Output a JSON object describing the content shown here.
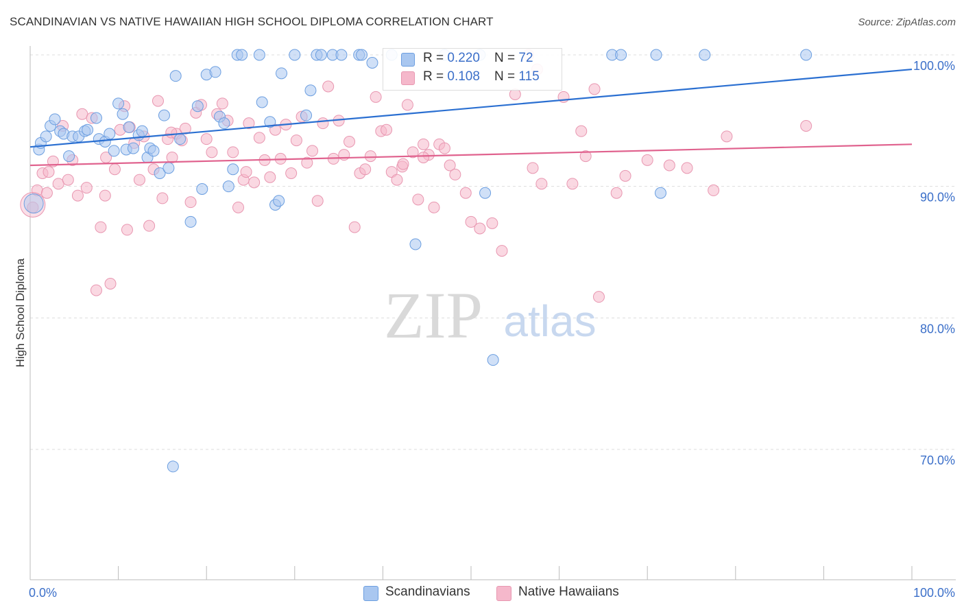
{
  "title": "SCANDINAVIAN VS NATIVE HAWAIIAN HIGH SCHOOL DIPLOMA CORRELATION CHART",
  "source": "Source: ZipAtlas.com",
  "watermark": {
    "zip": "ZIP",
    "atlas": "atlas"
  },
  "colors": {
    "blue_fill": "#a9c7f0",
    "blue_stroke": "#6b9ee0",
    "blue_line": "#2a6fd1",
    "pink_fill": "#f5b8cb",
    "pink_stroke": "#e896b0",
    "pink_line": "#e0628e",
    "axis_text": "#3b6fc9",
    "grid": "#dddddd"
  },
  "legend_top": {
    "rows": [
      {
        "r_label": "R = ",
        "r_value": "0.220",
        "n_label": "N = ",
        "n_value": "72"
      },
      {
        "r_label": "R = ",
        "r_value": "0.108",
        "n_label": "N = ",
        "n_value": "115"
      }
    ]
  },
  "bottom_legend": [
    "Scandinavians",
    "Native Hawaiians"
  ],
  "chart_data": {
    "type": "scatter",
    "title": "SCANDINAVIAN VS NATIVE HAWAIIAN HIGH SCHOOL DIPLOMA CORRELATION CHART",
    "xlabel": "",
    "ylabel": "High School Diploma",
    "xlim": [
      0,
      100
    ],
    "ylim": [
      60,
      102
    ],
    "x_tick_labels": [
      "0.0%",
      "100.0%"
    ],
    "y_ticks": [
      70,
      80,
      90,
      100
    ],
    "y_tick_labels": [
      "70.0%",
      "80.0%",
      "90.0%",
      "100.0%"
    ],
    "legend_position": "top-center",
    "series": [
      {
        "name": "Scandinavians",
        "R": 0.22,
        "N": 72,
        "trend": {
          "x": [
            0,
            100
          ],
          "y": [
            93.0,
            98.9
          ]
        },
        "points": [
          [
            1,
            92.8
          ],
          [
            1.2,
            93.3
          ],
          [
            1.8,
            93.8
          ],
          [
            2.3,
            94.6
          ],
          [
            2.8,
            95.1
          ],
          [
            3.4,
            94.2
          ],
          [
            3.8,
            94.0
          ],
          [
            4.4,
            92.3
          ],
          [
            4.8,
            93.8
          ],
          [
            5.5,
            93.8
          ],
          [
            6.2,
            94.2
          ],
          [
            6.5,
            94.3
          ],
          [
            7.5,
            95.2
          ],
          [
            7.8,
            93.6
          ],
          [
            8.5,
            93.4
          ],
          [
            9,
            94.0
          ],
          [
            9.5,
            92.7
          ],
          [
            10,
            96.3
          ],
          [
            10.5,
            95.5
          ],
          [
            10.9,
            92.8
          ],
          [
            11.2,
            94.5
          ],
          [
            11.7,
            92.9
          ],
          [
            12.3,
            93.9
          ],
          [
            12.7,
            94.2
          ],
          [
            13.3,
            92.2
          ],
          [
            13.6,
            92.9
          ],
          [
            14,
            92.7
          ],
          [
            14.7,
            91.0
          ],
          [
            15.2,
            95.4
          ],
          [
            15.7,
            91.4
          ],
          [
            16.5,
            98.4
          ],
          [
            17,
            93.6
          ],
          [
            18.2,
            87.3
          ],
          [
            19,
            96.1
          ],
          [
            19.5,
            89.8
          ],
          [
            20,
            98.5
          ],
          [
            21,
            98.7
          ],
          [
            21.5,
            95.3
          ],
          [
            22,
            94.8
          ],
          [
            22.5,
            90.0
          ],
          [
            23,
            91.3
          ],
          [
            23.5,
            100
          ],
          [
            24,
            100
          ],
          [
            26,
            100
          ],
          [
            26.3,
            96.4
          ],
          [
            27.2,
            94.9
          ],
          [
            27.8,
            88.6
          ],
          [
            28.2,
            88.9
          ],
          [
            28.5,
            98.6
          ],
          [
            30,
            100
          ],
          [
            31.3,
            95.4
          ],
          [
            31.8,
            97.3
          ],
          [
            32.5,
            100
          ],
          [
            33,
            100
          ],
          [
            34.3,
            100
          ],
          [
            35.3,
            100
          ],
          [
            37.3,
            100
          ],
          [
            37.6,
            100
          ],
          [
            38.8,
            99.4
          ],
          [
            41,
            100
          ],
          [
            43.7,
            85.6
          ],
          [
            47,
            100
          ],
          [
            51,
            100
          ],
          [
            51.6,
            89.5
          ],
          [
            52.5,
            76.8
          ],
          [
            66,
            100
          ],
          [
            67,
            100
          ],
          [
            71,
            100
          ],
          [
            71.5,
            89.5
          ],
          [
            76.5,
            100
          ],
          [
            88,
            100
          ],
          [
            16.2,
            68.7
          ]
        ]
      },
      {
        "name": "Native Hawaiians",
        "R": 0.108,
        "N": 115,
        "trend": {
          "x": [
            0,
            100
          ],
          "y": [
            91.6,
            93.2
          ]
        },
        "points": [
          [
            0.3,
            88.4
          ],
          [
            0.8,
            89.7
          ],
          [
            1.4,
            91.0
          ],
          [
            1.9,
            89.5
          ],
          [
            2.6,
            91.9
          ],
          [
            3.2,
            90.2
          ],
          [
            3.7,
            94.6
          ],
          [
            4.3,
            90.5
          ],
          [
            4.8,
            92.0
          ],
          [
            5.4,
            89.3
          ],
          [
            5.9,
            95.5
          ],
          [
            6.4,
            89.9
          ],
          [
            7,
            95.2
          ],
          [
            7.5,
            82.1
          ],
          [
            8,
            86.9
          ],
          [
            8.6,
            92.2
          ],
          [
            9.1,
            82.6
          ],
          [
            9.6,
            91.3
          ],
          [
            10.2,
            94.3
          ],
          [
            10.7,
            96.1
          ],
          [
            11.3,
            94.5
          ],
          [
            11.8,
            93.3
          ],
          [
            12.4,
            90.5
          ],
          [
            12.9,
            93.8
          ],
          [
            13.5,
            87.0
          ],
          [
            14,
            91.3
          ],
          [
            14.5,
            96.5
          ],
          [
            15,
            89.1
          ],
          [
            15.6,
            93.6
          ],
          [
            16.1,
            92.2
          ],
          [
            16.6,
            94.0
          ],
          [
            17.2,
            93.5
          ],
          [
            17.6,
            94.4
          ],
          [
            18.2,
            88.8
          ],
          [
            18.8,
            95.6
          ],
          [
            19.4,
            96.2
          ],
          [
            20,
            93.6
          ],
          [
            20.6,
            92.6
          ],
          [
            21.2,
            95.5
          ],
          [
            21.8,
            96.3
          ],
          [
            22.4,
            95.0
          ],
          [
            23,
            92.6
          ],
          [
            23.6,
            88.4
          ],
          [
            24.2,
            90.5
          ],
          [
            24.8,
            94.8
          ],
          [
            25.4,
            90.3
          ],
          [
            26,
            93.7
          ],
          [
            26.6,
            92.0
          ],
          [
            27.2,
            90.7
          ],
          [
            27.8,
            94.3
          ],
          [
            28.4,
            92.1
          ],
          [
            29,
            94.7
          ],
          [
            29.6,
            91.0
          ],
          [
            30.2,
            93.5
          ],
          [
            30.8,
            95.3
          ],
          [
            31.4,
            91.8
          ],
          [
            32,
            92.7
          ],
          [
            32.6,
            88.9
          ],
          [
            33.2,
            94.8
          ],
          [
            33.8,
            97.6
          ],
          [
            34.4,
            92.1
          ],
          [
            35,
            95.0
          ],
          [
            35.6,
            92.4
          ],
          [
            36.2,
            93.4
          ],
          [
            36.8,
            86.9
          ],
          [
            37.4,
            91.0
          ],
          [
            38,
            91.3
          ],
          [
            38.6,
            92.3
          ],
          [
            39.2,
            96.8
          ],
          [
            39.8,
            94.2
          ],
          [
            40.4,
            94.3
          ],
          [
            41,
            91.1
          ],
          [
            41.6,
            90.5
          ],
          [
            42.2,
            91.5
          ],
          [
            42.8,
            96.2
          ],
          [
            43.4,
            92.6
          ],
          [
            44,
            89.0
          ],
          [
            44.6,
            93.2
          ],
          [
            45.2,
            92.4
          ],
          [
            45.8,
            88.4
          ],
          [
            46.4,
            93.2
          ],
          [
            47,
            92.9
          ],
          [
            47.6,
            91.6
          ],
          [
            48.2,
            90.9
          ],
          [
            49.4,
            89.5
          ],
          [
            50,
            87.3
          ],
          [
            51,
            86.8
          ],
          [
            52.4,
            87.2
          ],
          [
            53.5,
            85.1
          ],
          [
            55,
            97.0
          ],
          [
            57,
            91.4
          ],
          [
            58,
            90.2
          ],
          [
            60.5,
            96.8
          ],
          [
            61.5,
            90.2
          ],
          [
            62.5,
            94.2
          ],
          [
            63,
            92.3
          ],
          [
            64.5,
            81.6
          ],
          [
            66.5,
            89.5
          ],
          [
            67.5,
            90.8
          ],
          [
            70,
            92.0
          ],
          [
            72.5,
            91.6
          ],
          [
            74.5,
            91.4
          ],
          [
            77.5,
            89.7
          ],
          [
            79,
            93.8
          ],
          [
            88,
            94.6
          ],
          [
            57.5,
            98.9
          ],
          [
            56.5,
            100
          ],
          [
            64,
            97.4
          ],
          [
            8.5,
            89.3
          ],
          [
            16,
            94.1
          ],
          [
            2.1,
            91.1
          ],
          [
            24.5,
            91.1
          ],
          [
            11,
            86.7
          ],
          [
            42.3,
            91.7
          ],
          [
            44.6,
            92.2
          ]
        ]
      }
    ]
  }
}
